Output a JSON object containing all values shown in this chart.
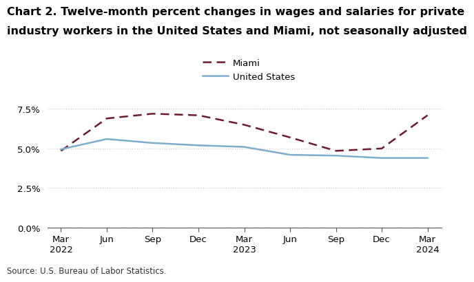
{
  "title_line1": "Chart 2. Twelve-month percent changes in wages and salaries for private",
  "title_line2": "industry workers in the United States and Miami, not seasonally adjusted",
  "source": "Source: U.S. Bureau of Labor Statistics.",
  "x_labels": [
    "Mar\n2022",
    "Jun",
    "Sep",
    "Dec",
    "Mar\n2023",
    "Jun",
    "Sep",
    "Dec",
    "Mar\n2024"
  ],
  "miami_values": [
    4.85,
    6.9,
    7.2,
    7.1,
    6.5,
    5.7,
    4.85,
    5.0,
    7.1
  ],
  "us_values": [
    4.95,
    5.6,
    5.35,
    5.2,
    5.1,
    4.6,
    4.55,
    4.4,
    4.4
  ],
  "miami_color": "#6b1a2b",
  "us_color": "#7aadce",
  "ylim_min": 0.0,
  "ylim_max": 8.5,
  "yticks": [
    0.0,
    2.5,
    5.0,
    7.5
  ],
  "ytick_labels": [
    "0.0%",
    "2.5%",
    "5.0%",
    "7.5%"
  ],
  "grid_color": "#cccccc",
  "background_color": "#ffffff",
  "legend_labels": [
    "Miami",
    "United States"
  ],
  "title_fontsize": 11.5,
  "axis_fontsize": 9.5,
  "source_fontsize": 8.5
}
